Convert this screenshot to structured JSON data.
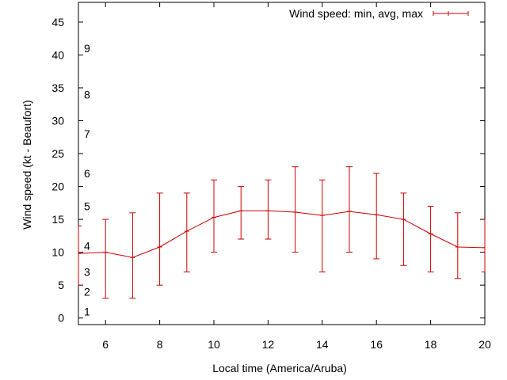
{
  "chart_data": {
    "type": "line",
    "title": "",
    "xlabel": "Local time (America/Aruba)",
    "ylabel": "Wind speed (kt - Beaufort)",
    "xlim": [
      5,
      20
    ],
    "ylim": [
      -1,
      48
    ],
    "x_ticks": [
      6,
      8,
      10,
      12,
      14,
      16,
      18,
      20
    ],
    "y_ticks": [
      0,
      5,
      10,
      15,
      20,
      25,
      30,
      35,
      40,
      45
    ],
    "beaufort_labels": [
      {
        "label": "1",
        "kt": 1
      },
      {
        "label": "2",
        "kt": 4
      },
      {
        "label": "3",
        "kt": 7
      },
      {
        "label": "4",
        "kt": 11
      },
      {
        "label": "5",
        "kt": 17
      },
      {
        "label": "6",
        "kt": 22
      },
      {
        "label": "7",
        "kt": 28
      },
      {
        "label": "8",
        "kt": 34
      },
      {
        "label": "9",
        "kt": 41
      }
    ],
    "grid": false,
    "legend_position": "top-right",
    "series": [
      {
        "name": "Wind speed: min, avg, max",
        "color": "#cc0000",
        "points": [
          {
            "x": 5,
            "min": 5,
            "avg": 9.8,
            "max": 14
          },
          {
            "x": 6,
            "min": 3,
            "avg": 10.0,
            "max": 15
          },
          {
            "x": 7,
            "min": 3,
            "avg": 9.2,
            "max": 16
          },
          {
            "x": 8,
            "min": 5,
            "avg": 10.8,
            "max": 19
          },
          {
            "x": 9,
            "min": 7,
            "avg": 13.2,
            "max": 19
          },
          {
            "x": 10,
            "min": 10,
            "avg": 15.3,
            "max": 21
          },
          {
            "x": 11,
            "min": 12,
            "avg": 16.3,
            "max": 20
          },
          {
            "x": 12,
            "min": 12,
            "avg": 16.3,
            "max": 21
          },
          {
            "x": 13,
            "min": 10,
            "avg": 16.1,
            "max": 23
          },
          {
            "x": 14,
            "min": 7,
            "avg": 15.6,
            "max": 21
          },
          {
            "x": 15,
            "min": 10,
            "avg": 16.2,
            "max": 23
          },
          {
            "x": 16,
            "min": 9,
            "avg": 15.7,
            "max": 22
          },
          {
            "x": 17,
            "min": 8,
            "avg": 15.0,
            "max": 19
          },
          {
            "x": 18,
            "min": 7,
            "avg": 12.8,
            "max": 17
          },
          {
            "x": 19,
            "min": 6,
            "avg": 10.8,
            "max": 16
          },
          {
            "x": 20,
            "min": 7,
            "avg": 10.7,
            "max": 15
          }
        ]
      }
    ]
  }
}
